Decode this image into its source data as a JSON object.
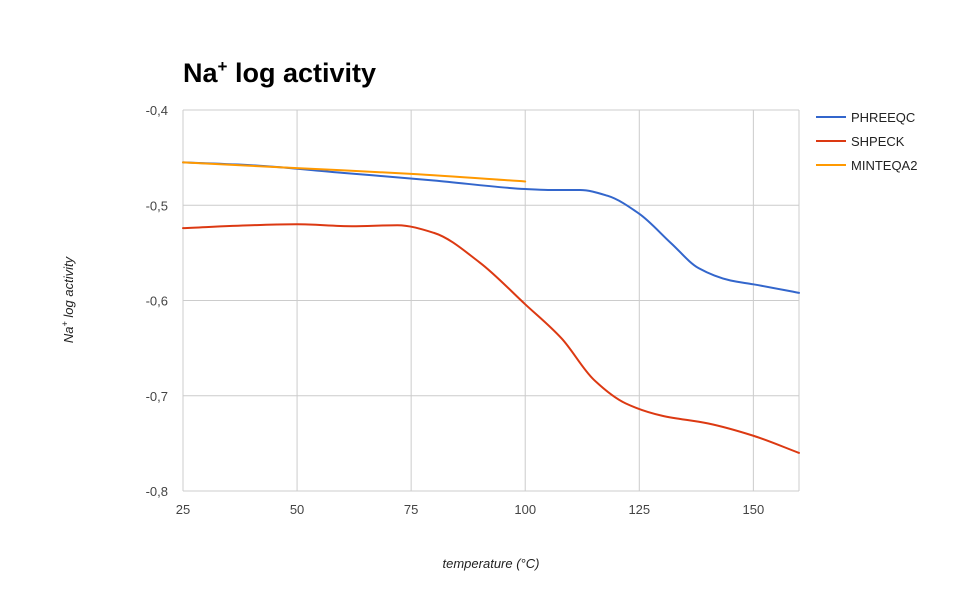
{
  "chart_data": {
    "type": "line",
    "title_main": "Na",
    "title_sup": "+",
    "title_rest": " log activity",
    "xlabel": "temperature (°C)",
    "ylabel_main": "Na",
    "ylabel_sup": "+",
    "ylabel_rest": " log activity",
    "xlim": [
      25,
      160
    ],
    "ylim": [
      -0.8,
      -0.4
    ],
    "x_ticks": [
      25,
      50,
      75,
      100,
      125,
      150
    ],
    "x_tick_labels": [
      "25",
      "50",
      "75",
      "100",
      "125",
      "150"
    ],
    "y_ticks": [
      -0.4,
      -0.5,
      -0.6,
      -0.7,
      -0.8
    ],
    "y_tick_labels": [
      "-0,4",
      "-0,5",
      "-0,6",
      "-0,7",
      "-0,8"
    ],
    "grid": true,
    "legend_position": "right",
    "series": [
      {
        "name": "PHREEQC",
        "color": "#3366cc",
        "points": [
          [
            25,
            -0.455
          ],
          [
            40,
            -0.458
          ],
          [
            60,
            -0.466
          ],
          [
            80,
            -0.474
          ],
          [
            100,
            -0.483
          ],
          [
            105,
            -0.484
          ],
          [
            112,
            -0.484
          ],
          [
            118,
            -0.49
          ],
          [
            125,
            -0.509
          ],
          [
            132,
            -0.54
          ],
          [
            138,
            -0.566
          ],
          [
            145,
            -0.579
          ],
          [
            150,
            -0.583
          ],
          [
            160,
            -0.592
          ]
        ]
      },
      {
        "name": "SHPECK",
        "color": "#dc3912",
        "points": [
          [
            25,
            -0.524
          ],
          [
            40,
            -0.521
          ],
          [
            50,
            -0.52
          ],
          [
            62,
            -0.522
          ],
          [
            72,
            -0.521
          ],
          [
            80,
            -0.529
          ],
          [
            90,
            -0.56
          ],
          [
            100,
            -0.604
          ],
          [
            108,
            -0.64
          ],
          [
            115,
            -0.683
          ],
          [
            122,
            -0.708
          ],
          [
            130,
            -0.721
          ],
          [
            140,
            -0.729
          ],
          [
            150,
            -0.742
          ],
          [
            160,
            -0.76
          ]
        ]
      },
      {
        "name": "MINTEQA2",
        "color": "#ff9900",
        "points": [
          [
            25,
            -0.455
          ],
          [
            50,
            -0.461
          ],
          [
            75,
            -0.467
          ],
          [
            100,
            -0.475
          ]
        ]
      }
    ]
  }
}
